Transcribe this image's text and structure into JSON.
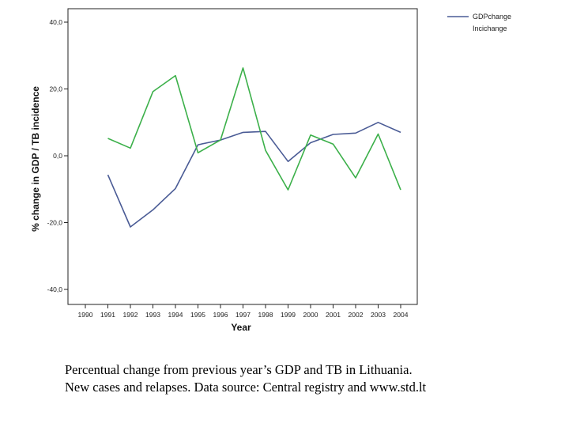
{
  "chart_data": {
    "type": "line",
    "xlabel": "Year",
    "ylabel": "% change in GDP / TB incidence",
    "x": [
      "1990",
      "1991",
      "1992",
      "1993",
      "1994",
      "1995",
      "1996",
      "1997",
      "1998",
      "1999",
      "2000",
      "2001",
      "2002",
      "2003",
      "2004"
    ],
    "ylim": [
      -40,
      40
    ],
    "yticks": [
      40,
      20,
      0,
      -20,
      -40
    ],
    "ytick_labels": [
      "40,0",
      "20,0",
      "0,0",
      "-20,0",
      "-40,0"
    ],
    "grid": false,
    "legend_position": "top-right",
    "series": [
      {
        "name": "GDPchange",
        "color": "#4a5b95",
        "values": [
          null,
          -5.7,
          -21.3,
          -16.2,
          -9.8,
          3.3,
          4.7,
          7.0,
          7.3,
          -1.7,
          3.9,
          6.4,
          6.8,
          10.0,
          7.0
        ]
      },
      {
        "name": "Incichange",
        "color": "#3cb04a",
        "values": [
          null,
          5.2,
          2.3,
          19.2,
          24.0,
          0.9,
          4.7,
          26.3,
          1.6,
          -10.2,
          6.2,
          3.5,
          -6.6,
          6.5,
          -10.2
        ]
      }
    ]
  },
  "caption": {
    "line1": "Percentual change from previous year’s GDP and TB in Lithuania.",
    "line2": "New cases and relapses. Data source: Central registry and www.std.lt"
  }
}
